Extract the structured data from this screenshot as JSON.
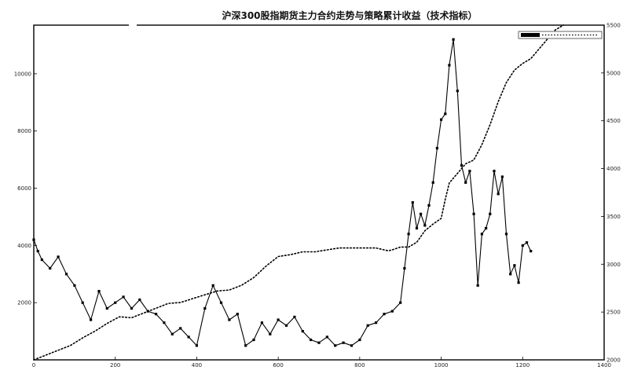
{
  "chart_data": {
    "type": "line",
    "title": "沪深300股指期货主力合约走势与策略累计收益（技术指标）",
    "xlabel": "",
    "ylabel_left": "",
    "ylabel_right": "",
    "xlim": [
      0,
      1400
    ],
    "ylim_left": [
      0,
      11700
    ],
    "ylim_right": [
      2000,
      5500
    ],
    "xticks": [
      "0",
      "200",
      "400",
      "600",
      "800",
      "1000",
      "1200",
      "1400"
    ],
    "yticks_left": [
      "2000",
      "4000",
      "6000",
      "8000",
      "10000"
    ],
    "yticks_right": [
      "2000",
      "2500",
      "3000",
      "3500",
      "4000",
      "4500",
      "5000",
      "5500"
    ],
    "grid": false,
    "legend_position": "top-right",
    "series": [
      {
        "axis": "left",
        "style": "solid-with-markers",
        "x": [
          0,
          10,
          20,
          40,
          60,
          80,
          100,
          120,
          140,
          160,
          180,
          200,
          220,
          240,
          260,
          280,
          300,
          320,
          340,
          360,
          380,
          400,
          420,
          440,
          460,
          480,
          500,
          520,
          540,
          560,
          580,
          600,
          620,
          640,
          660,
          680,
          700,
          720,
          740,
          760,
          780,
          800,
          820,
          840,
          860,
          880,
          900,
          910,
          920,
          930,
          940,
          950,
          960,
          970,
          980,
          990,
          1000,
          1010,
          1020,
          1030,
          1040,
          1050,
          1060,
          1070,
          1080,
          1090,
          1100,
          1110,
          1120,
          1130,
          1140,
          1150,
          1160,
          1170,
          1180,
          1190,
          1200,
          1210,
          1220
        ],
        "y": [
          4200,
          3800,
          3500,
          3200,
          3600,
          3000,
          2600,
          2000,
          1400,
          2400,
          1800,
          2000,
          2200,
          1800,
          2100,
          1700,
          1600,
          1300,
          900,
          1100,
          800,
          500,
          1800,
          2600,
          2000,
          1400,
          1600,
          500,
          700,
          1300,
          900,
          1400,
          1200,
          1500,
          1000,
          700,
          600,
          800,
          500,
          600,
          500,
          700,
          1200,
          1300,
          1600,
          1700,
          2000,
          3200,
          4400,
          5500,
          4600,
          5100,
          4700,
          5400,
          6200,
          7400,
          8400,
          8600,
          10300,
          11200,
          9400,
          6800,
          6200,
          6600,
          5100,
          2600,
          4400,
          4600,
          5100,
          6600,
          5800,
          6400,
          4400,
          3000,
          3300,
          2700,
          4000,
          4100,
          3800
        ]
      },
      {
        "axis": "right",
        "style": "dotted",
        "x": [
          0,
          30,
          60,
          90,
          120,
          150,
          180,
          210,
          240,
          270,
          300,
          330,
          360,
          390,
          420,
          450,
          480,
          510,
          540,
          570,
          600,
          630,
          660,
          690,
          720,
          750,
          780,
          810,
          840,
          870,
          880,
          900,
          920,
          940,
          960,
          980,
          1000,
          1010,
          1020,
          1040,
          1060,
          1080,
          1100,
          1120,
          1140,
          1160,
          1180,
          1200,
          1220,
          1250,
          1280,
          1300
        ],
        "y": [
          2000,
          2050,
          2100,
          2150,
          2230,
          2300,
          2380,
          2450,
          2440,
          2490,
          2540,
          2590,
          2600,
          2640,
          2680,
          2720,
          2730,
          2780,
          2860,
          2980,
          3080,
          3100,
          3130,
          3130,
          3150,
          3170,
          3170,
          3170,
          3170,
          3140,
          3150,
          3180,
          3180,
          3230,
          3350,
          3420,
          3480,
          3680,
          3850,
          3950,
          4050,
          4090,
          4250,
          4460,
          4700,
          4900,
          5030,
          5100,
          5150,
          5300,
          5450,
          5500
        ]
      }
    ]
  }
}
